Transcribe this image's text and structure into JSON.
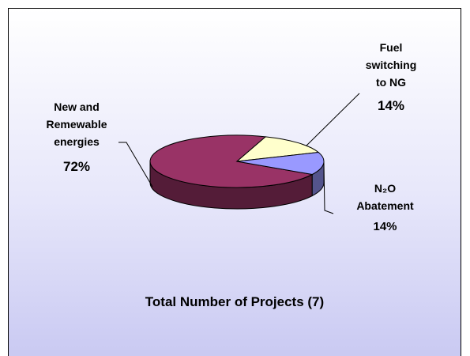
{
  "chart_data": {
    "type": "pie",
    "title": "Total Number of Projects (7)",
    "categories": [
      "New and Remewable energies",
      "Fuel switching to NG",
      "N₂O Abatement"
    ],
    "values": [
      72,
      14,
      14
    ],
    "value_labels": [
      "72%",
      "14%",
      "14%"
    ],
    "colors": [
      "#993366",
      "#ffffcc",
      "#9999ff"
    ]
  }
}
